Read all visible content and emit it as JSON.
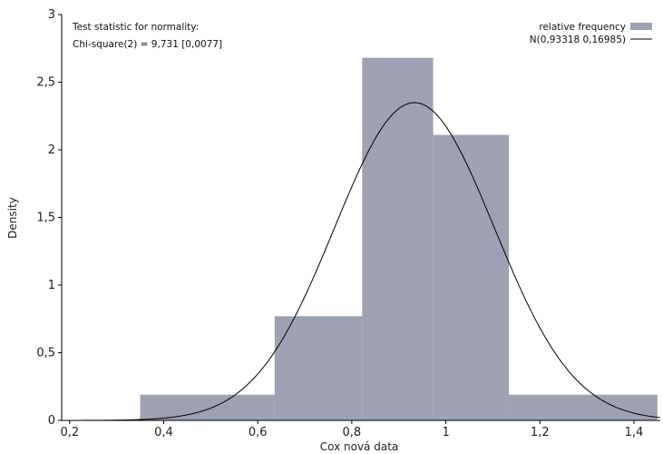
{
  "chart_data": {
    "type": "histogram",
    "xlabel": "Cox nová data",
    "ylabel": "Density",
    "xlim": [
      0.183,
      1.456
    ],
    "ylim": [
      0,
      3
    ],
    "x_ticks": [
      "0,2",
      "0,4",
      "0,6",
      "0,8",
      "1",
      "1,2",
      "1,4"
    ],
    "x_tick_values": [
      0.2,
      0.4,
      0.6,
      0.8,
      1.0,
      1.2,
      1.4
    ],
    "y_ticks": [
      "0",
      "0,5",
      "1",
      "1,5",
      "2",
      "2,5",
      "3"
    ],
    "y_tick_values": [
      0,
      0.5,
      1,
      1.5,
      2,
      2.5,
      3
    ],
    "bars": [
      {
        "x0": 0.35,
        "x1": 0.636,
        "density": 0.19
      },
      {
        "x0": 0.636,
        "x1": 0.822,
        "density": 0.77
      },
      {
        "x0": 0.822,
        "x1": 0.973,
        "density": 2.68
      },
      {
        "x0": 0.973,
        "x1": 1.134,
        "density": 2.11
      },
      {
        "x0": 1.134,
        "x1": 1.45,
        "density": 0.19
      }
    ],
    "normal_curve": {
      "mean": 0.93318,
      "sd": 0.16985
    },
    "annotation": [
      "Test statistic for normality:",
      "Chi-square(2) = 9,731 [0,0077]"
    ],
    "legend": [
      {
        "label": "relative frequency",
        "kind": "bar"
      },
      {
        "label": "N(0,93318 0,16985)",
        "kind": "line"
      }
    ],
    "legend_position": "top-right",
    "colors": {
      "bar": "#9da1b1",
      "curve": "#000000",
      "axis": "#000000"
    }
  }
}
